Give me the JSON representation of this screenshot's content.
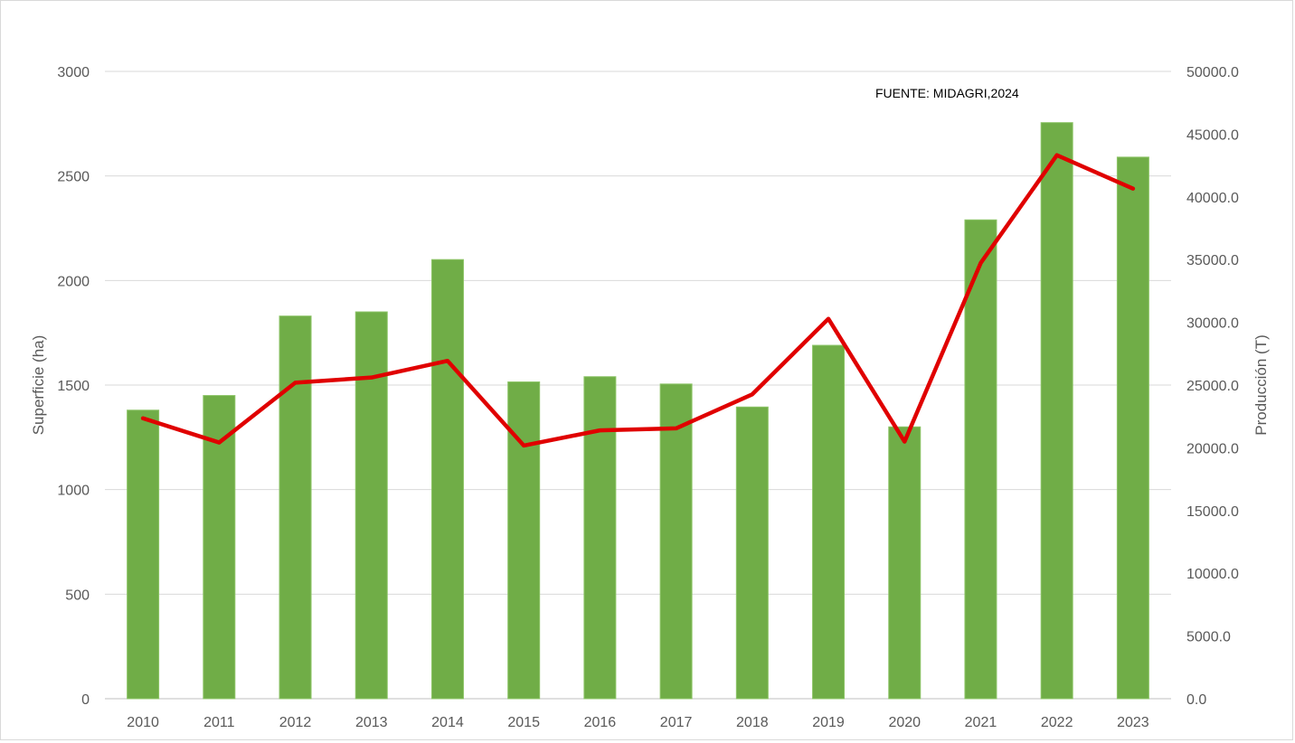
{
  "chart_data": {
    "type": "bar",
    "categories": [
      "2010",
      "2011",
      "2012",
      "2013",
      "2014",
      "2015",
      "2016",
      "2017",
      "2018",
      "2019",
      "2020",
      "2021",
      "2022",
      "2023"
    ],
    "series": [
      {
        "type": "bar",
        "axis": "left",
        "color": "#70ad47",
        "values": [
          1380,
          1450,
          1830,
          1850,
          2100,
          1515,
          1540,
          1505,
          1395,
          1690,
          1300,
          2290,
          2755,
          2590
        ]
      },
      {
        "type": "line",
        "axis": "right",
        "color": "#e00000",
        "values": [
          22350,
          20420,
          25190,
          25600,
          26930,
          20180,
          21390,
          21550,
          24260,
          30280,
          20490,
          34730,
          43320,
          40660
        ]
      }
    ],
    "ylabel": "Superficie (ha)",
    "ylabel_right": "Producción (T)",
    "ylim": [
      0,
      3000
    ],
    "ylim_right": [
      0,
      50000
    ],
    "yticks": [
      "0",
      "500",
      "1000",
      "1500",
      "2000",
      "2500",
      "3000"
    ],
    "yticks_right": [
      "0.0",
      "5000.0",
      "10000.0",
      "15000.0",
      "20000.0",
      "25000.0",
      "30000.0",
      "35000.0",
      "40000.0",
      "45000.0",
      "50000.0"
    ],
    "annotation": "FUENTE: MIDAGRI,2024",
    "grid": true,
    "legend": "none"
  }
}
